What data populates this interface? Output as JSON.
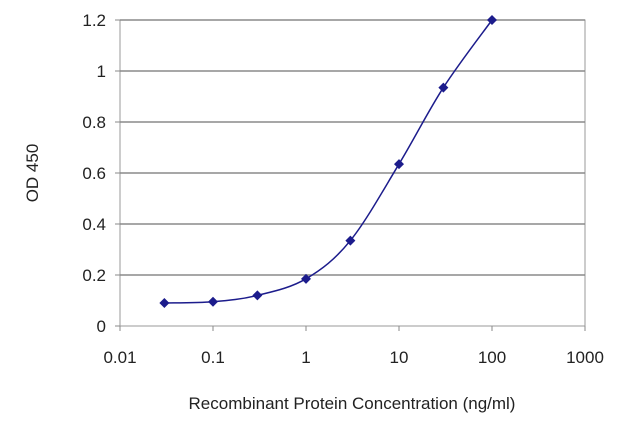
{
  "chart_data": {
    "type": "line",
    "title": "",
    "xlabel": "Recombinant Protein Concentration (ng/ml)",
    "ylabel": "OD 450",
    "x_scale": "log",
    "xlim": [
      0.01,
      1000
    ],
    "ylim": [
      0,
      1.2
    ],
    "x_ticks": [
      0.01,
      0.1,
      1,
      10,
      100,
      1000
    ],
    "x_tick_labels": [
      "0.01",
      "0.1",
      "1",
      "10",
      "100",
      "1000"
    ],
    "y_ticks": [
      0,
      0.2,
      0.4,
      0.6,
      0.8,
      1,
      1.2
    ],
    "y_tick_labels": [
      "0",
      "0.2",
      "0.4",
      "0.6",
      "0.8",
      "1",
      "1.2"
    ],
    "grid": "horizontal",
    "legend": "none",
    "series": [
      {
        "x": [
          0.03,
          0.1,
          0.3,
          1,
          3,
          10,
          30,
          100
        ],
        "y": [
          0.09,
          0.095,
          0.12,
          0.185,
          0.335,
          0.635,
          0.935,
          1.2
        ],
        "color": "#1c1c8c",
        "marker": "diamond"
      }
    ]
  }
}
